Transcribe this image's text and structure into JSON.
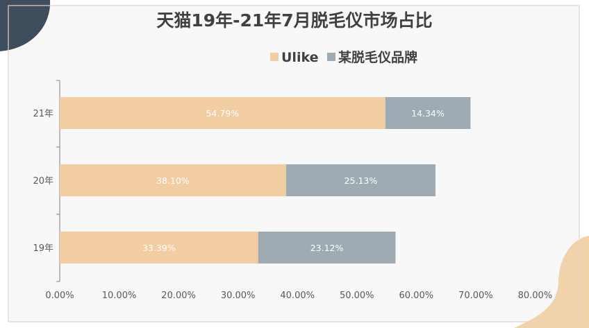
{
  "colors": {
    "background": "#ffffff",
    "panel": "#f8f8f8",
    "frame_border": "#e8d2c2",
    "corner_blob_top_left": "#3d4d5c",
    "corner_blob_bottom_right": "#f1d3ab",
    "axis_line": "#808080",
    "title_text": "#404040",
    "tick_text": "#595959",
    "data_label_text": "#ffffff"
  },
  "chart_data": {
    "type": "bar",
    "orientation": "horizontal",
    "stacked": true,
    "title": "天猫19年-21年7月脱毛仪市场占比",
    "categories": [
      "21年",
      "20年",
      "19年"
    ],
    "series": [
      {
        "name": "Ulike",
        "color": "#f1cda1",
        "values": [
          54.79,
          38.1,
          33.39
        ],
        "labels": [
          "54.79%",
          "38.10%",
          "33.39%"
        ]
      },
      {
        "name": "某脱毛仪品牌",
        "color": "#9eabb3",
        "values": [
          14.34,
          25.13,
          23.12
        ],
        "labels": [
          "14.34%",
          "25.13%",
          "23.12%"
        ]
      }
    ],
    "x_ticks": [
      "0.00%",
      "10.00%",
      "20.00%",
      "30.00%",
      "40.00%",
      "50.00%",
      "60.00%",
      "70.00%",
      "80.00%"
    ],
    "xlim": [
      0,
      80
    ],
    "legend_position": "top-right",
    "grid": false,
    "data_labels": true
  }
}
